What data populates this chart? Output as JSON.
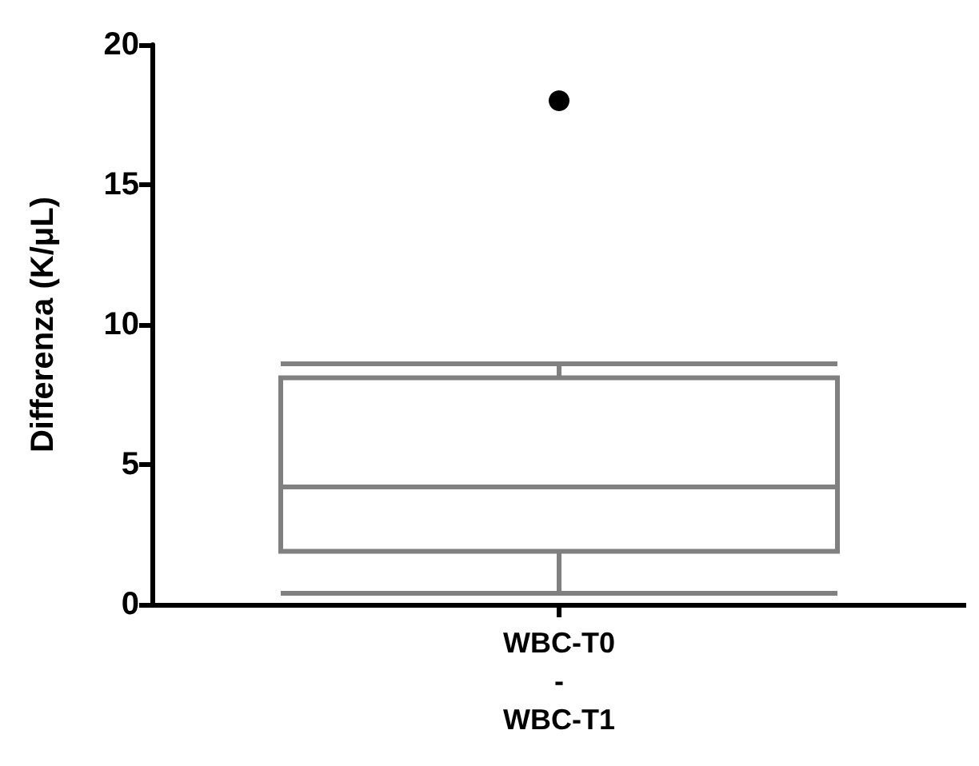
{
  "chart_data": {
    "type": "box",
    "ylabel": "Differenza (K/μL)",
    "categories": [
      "WBC-T0\n-\nWBC-T1"
    ],
    "series": [
      {
        "color": "#808080",
        "boxes": [
          {
            "low": 0.4,
            "q1": 1.9,
            "median": 4.2,
            "q3": 8.1,
            "high": 8.6,
            "outliers": [
              18
            ]
          }
        ]
      }
    ],
    "ylim": [
      0,
      20
    ],
    "yticks": [
      0,
      5,
      10,
      15,
      20
    ],
    "marker": "circle"
  }
}
